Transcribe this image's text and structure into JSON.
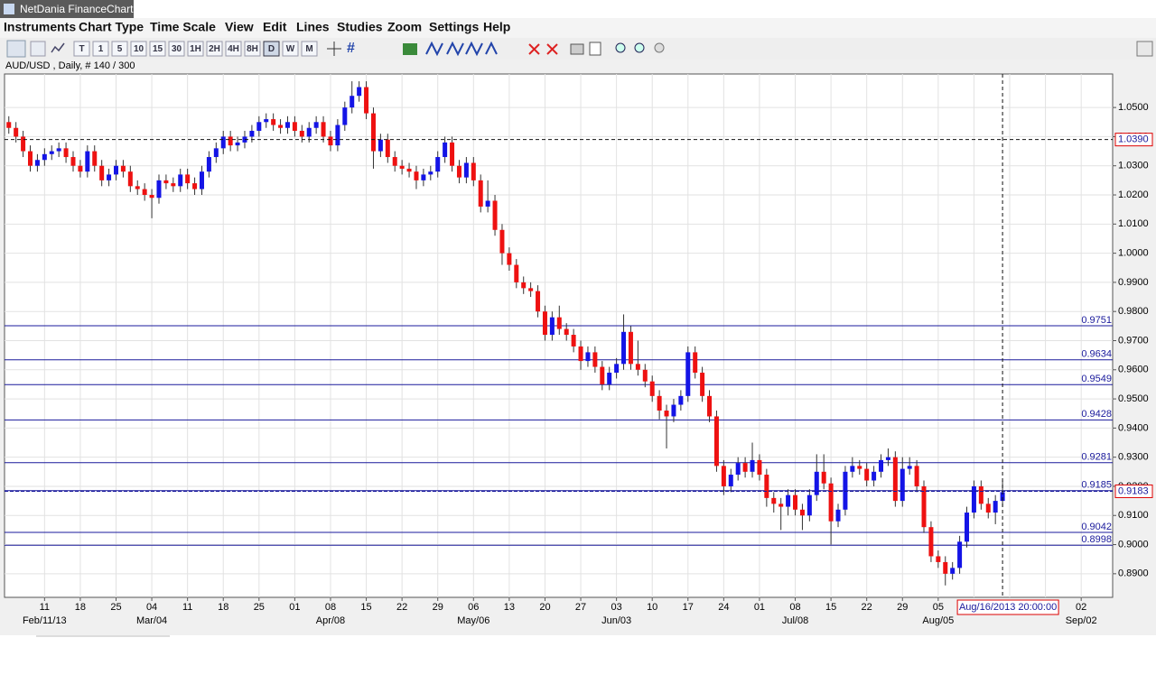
{
  "header": {
    "title": "NetDania FinanceChart"
  },
  "menu": [
    "Instruments",
    "Chart Type",
    "Time Scale",
    "View",
    "Edit",
    "Lines",
    "Studies",
    "Zoom",
    "Settings",
    "Help"
  ],
  "toolbar": [
    "T",
    "1",
    "5",
    "10",
    "15",
    "30",
    "1H",
    "2H",
    "4H",
    "8H",
    "D",
    "W",
    "M"
  ],
  "chart_data": {
    "type": "candlestick",
    "title": "AUD/USD , Daily, # 140 / 300",
    "up_color": "#1414e6",
    "down_color": "#ee1111",
    "level_color": "#1a1a9c",
    "xlim": [
      -0.6,
      154.4
    ],
    "ylim": [
      0.8819,
      1.0615
    ],
    "yticks": [
      {
        "value": 0.89,
        "label": "0.8900"
      },
      {
        "value": 0.9,
        "label": "0.9000"
      },
      {
        "value": 0.91,
        "label": "0.9100"
      },
      {
        "value": 0.92,
        "label": "0.9200"
      },
      {
        "value": 0.93,
        "label": "0.9300"
      },
      {
        "value": 0.94,
        "label": "0.9400"
      },
      {
        "value": 0.95,
        "label": "0.9500"
      },
      {
        "value": 0.96,
        "label": "0.9600"
      },
      {
        "value": 0.97,
        "label": "0.9700"
      },
      {
        "value": 0.98,
        "label": "0.9800"
      },
      {
        "value": 0.99,
        "label": "0.9900"
      },
      {
        "value": 1.0,
        "label": "1.0000"
      },
      {
        "value": 1.01,
        "label": "1.0100"
      },
      {
        "value": 1.02,
        "label": "1.0200"
      },
      {
        "value": 1.03,
        "label": "1.0300"
      },
      {
        "value": 1.04,
        "label": "1.0400"
      },
      {
        "value": 1.05,
        "label": "1.0500"
      }
    ],
    "grid": true,
    "day_labels": [
      "11",
      "18",
      "25",
      "04",
      "11",
      "18",
      "25",
      "01",
      "08",
      "15",
      "22",
      "29",
      "06",
      "13",
      "20",
      "27",
      "03",
      "10",
      "17",
      "24",
      "01",
      "08",
      "15",
      "22",
      "29",
      "05",
      null,
      null,
      null,
      "02"
    ],
    "month_labels": [
      "Feb/11/13",
      null,
      null,
      "Mar/04",
      null,
      null,
      null,
      null,
      "Apr/08",
      null,
      null,
      null,
      "May/06",
      null,
      null,
      null,
      "Jun/03",
      null,
      null,
      null,
      null,
      "Jul/08",
      null,
      null,
      null,
      "Aug/05",
      null,
      null,
      null,
      "Sep/02"
    ],
    "levels": [
      0.9751,
      0.9634,
      0.9549,
      0.9428,
      0.9281,
      0.9185,
      0.9042,
      0.8998
    ],
    "last_price": 0.9183,
    "crosshair": {
      "price": {
        "value": 1.039,
        "label": "1.0390"
      },
      "index": 139,
      "label": "Aug/16/2013 20:00:00"
    },
    "candles": [
      [
        1.045,
        1.047,
        1.041,
        1.043
      ],
      [
        1.043,
        1.045,
        1.038,
        1.04
      ],
      [
        1.04,
        1.042,
        1.033,
        1.035
      ],
      [
        1.035,
        1.037,
        1.028,
        1.03
      ],
      [
        1.03,
        1.034,
        1.028,
        1.032
      ],
      [
        1.032,
        1.036,
        1.03,
        1.034
      ],
      [
        1.034,
        1.037,
        1.032,
        1.035
      ],
      [
        1.035,
        1.038,
        1.033,
        1.036
      ],
      [
        1.036,
        1.038,
        1.031,
        1.033
      ],
      [
        1.033,
        1.035,
        1.028,
        1.03
      ],
      [
        1.03,
        1.032,
        1.026,
        1.028
      ],
      [
        1.028,
        1.037,
        1.026,
        1.035
      ],
      [
        1.035,
        1.037,
        1.028,
        1.03
      ],
      [
        1.03,
        1.032,
        1.023,
        1.025
      ],
      [
        1.025,
        1.029,
        1.023,
        1.027
      ],
      [
        1.027,
        1.032,
        1.025,
        1.03
      ],
      [
        1.03,
        1.032,
        1.026,
        1.028
      ],
      [
        1.028,
        1.03,
        1.021,
        1.023
      ],
      [
        1.023,
        1.025,
        1.02,
        1.022
      ],
      [
        1.022,
        1.024,
        1.018,
        1.02
      ],
      [
        1.02,
        1.022,
        1.012,
        1.019
      ],
      [
        1.019,
        1.027,
        1.017,
        1.025
      ],
      [
        1.025,
        1.027,
        1.022,
        1.024
      ],
      [
        1.024,
        1.026,
        1.021,
        1.023
      ],
      [
        1.023,
        1.029,
        1.021,
        1.027
      ],
      [
        1.027,
        1.029,
        1.022,
        1.024
      ],
      [
        1.024,
        1.026,
        1.02,
        1.022
      ],
      [
        1.022,
        1.03,
        1.02,
        1.028
      ],
      [
        1.028,
        1.035,
        1.026,
        1.033
      ],
      [
        1.033,
        1.038,
        1.031,
        1.036
      ],
      [
        1.036,
        1.042,
        1.034,
        1.04
      ],
      [
        1.04,
        1.042,
        1.035,
        1.037
      ],
      [
        1.037,
        1.04,
        1.035,
        1.038
      ],
      [
        1.038,
        1.042,
        1.036,
        1.04
      ],
      [
        1.04,
        1.044,
        1.038,
        1.042
      ],
      [
        1.042,
        1.047,
        1.04,
        1.045
      ],
      [
        1.045,
        1.048,
        1.043,
        1.046
      ],
      [
        1.046,
        1.048,
        1.042,
        1.044
      ],
      [
        1.044,
        1.046,
        1.041,
        1.043
      ],
      [
        1.043,
        1.047,
        1.041,
        1.045
      ],
      [
        1.045,
        1.047,
        1.04,
        1.042
      ],
      [
        1.042,
        1.044,
        1.038,
        1.04
      ],
      [
        1.04,
        1.045,
        1.038,
        1.043
      ],
      [
        1.043,
        1.047,
        1.041,
        1.045
      ],
      [
        1.045,
        1.047,
        1.038,
        1.04
      ],
      [
        1.04,
        1.042,
        1.035,
        1.037
      ],
      [
        1.037,
        1.046,
        1.035,
        1.044
      ],
      [
        1.044,
        1.052,
        1.042,
        1.05
      ],
      [
        1.05,
        1.059,
        1.048,
        1.054
      ],
      [
        1.054,
        1.059,
        1.052,
        1.057
      ],
      [
        1.057,
        1.059,
        1.046,
        1.048
      ],
      [
        1.048,
        1.05,
        1.029,
        1.035
      ],
      [
        1.035,
        1.041,
        1.033,
        1.039
      ],
      [
        1.039,
        1.041,
        1.031,
        1.033
      ],
      [
        1.033,
        1.035,
        1.028,
        1.03
      ],
      [
        1.03,
        1.032,
        1.027,
        1.029
      ],
      [
        1.029,
        1.031,
        1.026,
        1.028
      ],
      [
        1.028,
        1.03,
        1.022,
        1.025
      ],
      [
        1.025,
        1.029,
        1.023,
        1.027
      ],
      [
        1.027,
        1.03,
        1.025,
        1.028
      ],
      [
        1.028,
        1.035,
        1.026,
        1.033
      ],
      [
        1.033,
        1.04,
        1.031,
        1.038
      ],
      [
        1.038,
        1.04,
        1.028,
        1.03
      ],
      [
        1.03,
        1.032,
        1.024,
        1.026
      ],
      [
        1.026,
        1.033,
        1.024,
        1.031
      ],
      [
        1.031,
        1.033,
        1.023,
        1.025
      ],
      [
        1.025,
        1.027,
        1.014,
        1.016
      ],
      [
        1.016,
        1.025,
        1.014,
        1.018
      ],
      [
        1.018,
        1.02,
        1.006,
        1.008
      ],
      [
        1.008,
        1.01,
        0.996,
        1.0
      ],
      [
        1.0,
        1.002,
        0.994,
        0.996
      ],
      [
        0.996,
        0.998,
        0.988,
        0.99
      ],
      [
        0.99,
        0.992,
        0.986,
        0.988
      ],
      [
        0.988,
        0.99,
        0.985,
        0.987
      ],
      [
        0.987,
        0.989,
        0.978,
        0.98
      ],
      [
        0.98,
        0.982,
        0.97,
        0.972
      ],
      [
        0.972,
        0.98,
        0.97,
        0.978
      ],
      [
        0.978,
        0.982,
        0.972,
        0.974
      ],
      [
        0.974,
        0.976,
        0.97,
        0.972
      ],
      [
        0.972,
        0.974,
        0.966,
        0.968
      ],
      [
        0.968,
        0.97,
        0.96,
        0.963
      ],
      [
        0.963,
        0.968,
        0.961,
        0.966
      ],
      [
        0.966,
        0.968,
        0.959,
        0.961
      ],
      [
        0.961,
        0.963,
        0.953,
        0.955
      ],
      [
        0.955,
        0.961,
        0.953,
        0.959
      ],
      [
        0.959,
        0.964,
        0.957,
        0.962
      ],
      [
        0.962,
        0.979,
        0.96,
        0.973
      ],
      [
        0.973,
        0.975,
        0.96,
        0.962
      ],
      [
        0.962,
        0.97,
        0.958,
        0.96
      ],
      [
        0.96,
        0.962,
        0.954,
        0.956
      ],
      [
        0.956,
        0.958,
        0.949,
        0.951
      ],
      [
        0.951,
        0.953,
        0.943,
        0.946
      ],
      [
        0.946,
        0.948,
        0.933,
        0.944
      ],
      [
        0.944,
        0.95,
        0.942,
        0.948
      ],
      [
        0.948,
        0.953,
        0.946,
        0.951
      ],
      [
        0.951,
        0.968,
        0.949,
        0.966
      ],
      [
        0.966,
        0.968,
        0.957,
        0.959
      ],
      [
        0.959,
        0.961,
        0.949,
        0.951
      ],
      [
        0.951,
        0.953,
        0.942,
        0.944
      ],
      [
        0.944,
        0.946,
        0.925,
        0.927
      ],
      [
        0.927,
        0.929,
        0.917,
        0.92
      ],
      [
        0.92,
        0.926,
        0.918,
        0.924
      ],
      [
        0.924,
        0.93,
        0.922,
        0.928
      ],
      [
        0.928,
        0.93,
        0.923,
        0.925
      ],
      [
        0.925,
        0.935,
        0.923,
        0.929
      ],
      [
        0.929,
        0.931,
        0.922,
        0.924
      ],
      [
        0.924,
        0.926,
        0.913,
        0.916
      ],
      [
        0.916,
        0.918,
        0.911,
        0.914
      ],
      [
        0.914,
        0.916,
        0.905,
        0.913
      ],
      [
        0.913,
        0.919,
        0.91,
        0.917
      ],
      [
        0.917,
        0.919,
        0.91,
        0.912
      ],
      [
        0.912,
        0.914,
        0.905,
        0.91
      ],
      [
        0.91,
        0.919,
        0.908,
        0.917
      ],
      [
        0.917,
        0.931,
        0.915,
        0.925
      ],
      [
        0.925,
        0.931,
        0.919,
        0.921
      ],
      [
        0.921,
        0.923,
        0.9,
        0.908
      ],
      [
        0.908,
        0.914,
        0.906,
        0.912
      ],
      [
        0.912,
        0.927,
        0.91,
        0.925
      ],
      [
        0.925,
        0.93,
        0.923,
        0.927
      ],
      [
        0.927,
        0.929,
        0.924,
        0.926
      ],
      [
        0.926,
        0.928,
        0.92,
        0.922
      ],
      [
        0.922,
        0.927,
        0.92,
        0.925
      ],
      [
        0.925,
        0.931,
        0.923,
        0.929
      ],
      [
        0.929,
        0.933,
        0.927,
        0.93
      ],
      [
        0.93,
        0.932,
        0.913,
        0.915
      ],
      [
        0.915,
        0.93,
        0.913,
        0.926
      ],
      [
        0.926,
        0.93,
        0.924,
        0.927
      ],
      [
        0.927,
        0.929,
        0.918,
        0.92
      ],
      [
        0.92,
        0.922,
        0.904,
        0.906
      ],
      [
        0.906,
        0.908,
        0.894,
        0.896
      ],
      [
        0.896,
        0.898,
        0.892,
        0.894
      ],
      [
        0.894,
        0.896,
        0.886,
        0.89
      ],
      [
        0.89,
        0.894,
        0.888,
        0.892
      ],
      [
        0.892,
        0.903,
        0.89,
        0.901
      ],
      [
        0.901,
        0.913,
        0.899,
        0.911
      ],
      [
        0.911,
        0.922,
        0.909,
        0.92
      ],
      [
        0.92,
        0.922,
        0.912,
        0.914
      ],
      [
        0.914,
        0.916,
        0.909,
        0.911
      ],
      [
        0.911,
        0.917,
        0.907,
        0.915
      ],
      [
        0.915,
        0.922,
        0.913,
        0.918
      ]
    ]
  }
}
